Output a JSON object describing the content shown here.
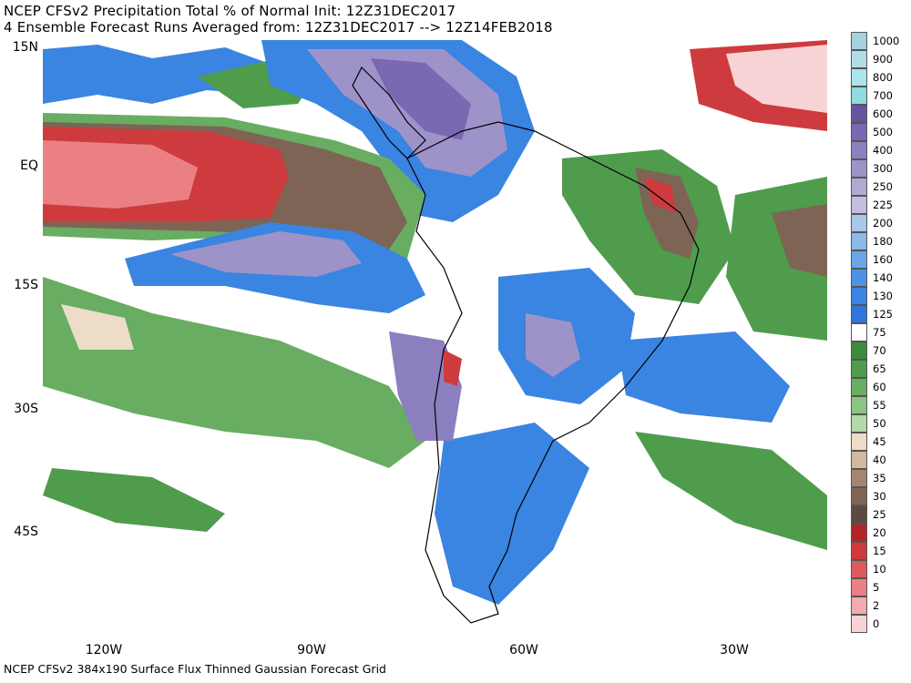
{
  "header": {
    "title_line1": "NCEP CFSv2 Precipitation Total % of Normal Init: 12Z31DEC2017",
    "title_line2": "4 Ensemble Forecast Runs Averaged from: 12Z31DEC2017 --> 12Z14FEB2018"
  },
  "axes": {
    "lat_labels": [
      "15N",
      "EQ",
      "15S",
      "30S",
      "45S"
    ],
    "lon_labels": [
      "120W",
      "90W",
      "60W",
      "30W"
    ]
  },
  "footer": {
    "text": "NCEP CFSv2 384x190 Surface Flux Thinned Gaussian Forecast Grid"
  },
  "legend": {
    "items": [
      {
        "label": "1000",
        "color": "#a6d1df"
      },
      {
        "label": "900",
        "color": "#b2dce6"
      },
      {
        "label": "800",
        "color": "#a9e7ec"
      },
      {
        "label": "700",
        "color": "#8edbe1"
      },
      {
        "label": "600",
        "color": "#6a52a3"
      },
      {
        "label": "500",
        "color": "#7a68b3"
      },
      {
        "label": "400",
        "color": "#8c7fbf"
      },
      {
        "label": "300",
        "color": "#9d93c8"
      },
      {
        "label": "250",
        "color": "#b2a9d3"
      },
      {
        "label": "225",
        "color": "#c4bde0"
      },
      {
        "label": "200",
        "color": "#a9c6ec"
      },
      {
        "label": "180",
        "color": "#8ab9ea"
      },
      {
        "label": "160",
        "color": "#6aa6e8"
      },
      {
        "label": "140",
        "color": "#4d93e5"
      },
      {
        "label": "130",
        "color": "#3a84e2"
      },
      {
        "label": "125",
        "color": "#2f76de"
      },
      {
        "label": "75",
        "color": "#ffffff"
      },
      {
        "label": "70",
        "color": "#3d8b3d"
      },
      {
        "label": "65",
        "color": "#4f9c4c"
      },
      {
        "label": "60",
        "color": "#68ad62"
      },
      {
        "label": "55",
        "color": "#8cc484"
      },
      {
        "label": "50",
        "color": "#b3d9a8"
      },
      {
        "label": "45",
        "color": "#ecdcc8"
      },
      {
        "label": "40",
        "color": "#d2b9a0"
      },
      {
        "label": "35",
        "color": "#a48670"
      },
      {
        "label": "30",
        "color": "#7e6454"
      },
      {
        "label": "25",
        "color": "#5b4a40"
      },
      {
        "label": "20",
        "color": "#b32429"
      },
      {
        "label": "15",
        "color": "#cd3b3e"
      },
      {
        "label": "10",
        "color": "#de5a5c"
      },
      {
        "label": "5",
        "color": "#ea8084"
      },
      {
        "label": "2",
        "color": "#f2abae"
      },
      {
        "label": "0",
        "color": "#f8d3d5"
      }
    ]
  }
}
